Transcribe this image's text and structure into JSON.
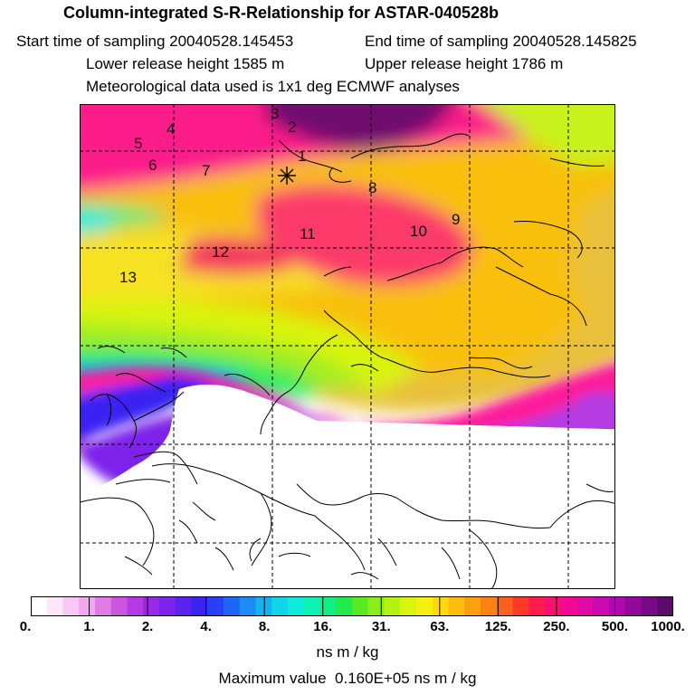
{
  "header": {
    "title": "Column-integrated S-R-Relationship for ASTAR-040528b",
    "start_time": "Start time of sampling 20040528.145453",
    "end_time": "End time of sampling 20040528.145825",
    "lower_release": "Lower release height 1585 m",
    "upper_release": "Upper release height 1786 m",
    "met_data": "Meteorological data used is 1x1 deg ECMWF analyses"
  },
  "map": {
    "station_labels": [
      "1",
      "2",
      "3",
      "4",
      "5",
      "6",
      "7",
      "8",
      "9",
      "10",
      "11",
      "12",
      "13"
    ],
    "station_marker": "asterisk-marker"
  },
  "colorbar": {
    "tick_labels": [
      "0.",
      "1.",
      "2.",
      "4.",
      "8.",
      "16.",
      "31.",
      "63.",
      "125.",
      "250.",
      "500.",
      "1000."
    ],
    "units": "ns m / kg",
    "colors": [
      "#ffffff",
      "#fde6fa",
      "#f9c8f4",
      "#f3a6ee",
      "#e07be6",
      "#cc55e0",
      "#b53ae2",
      "#9a28e4",
      "#7d24ea",
      "#5a22ee",
      "#3b24f2",
      "#2840f6",
      "#1e66f6",
      "#1a8cf4",
      "#16b2f0",
      "#12d4ea",
      "#10ecdc",
      "#10f2b4",
      "#12ee84",
      "#22ea4c",
      "#5aea22",
      "#8cee18",
      "#b4f214",
      "#d8f410",
      "#f4f010",
      "#fcd80e",
      "#fcbc10",
      "#fca010",
      "#fc8216",
      "#fc601c",
      "#fc3a2a",
      "#fc1e4a",
      "#fc1070",
      "#f40a92",
      "#e00aa4",
      "#c80aae",
      "#ae0aae",
      "#920a9c",
      "#780a86",
      "#5c0a6c"
    ],
    "boundaries": [
      0,
      5,
      10,
      15,
      20,
      25,
      30,
      35,
      40,
      45,
      50,
      55,
      60,
      65,
      70,
      75,
      80,
      85,
      90,
      95,
      100,
      105,
      110,
      115,
      120,
      125,
      130,
      135,
      140,
      145,
      150,
      155,
      160,
      165,
      170,
      175,
      180,
      185,
      190,
      195,
      200
    ]
  },
  "max_value_text": "Maximum value  0.160E+05 ns m / kg"
}
